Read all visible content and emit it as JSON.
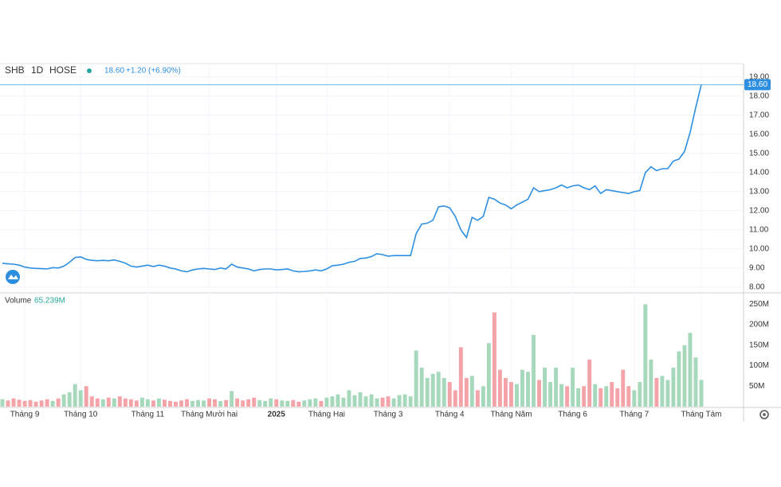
{
  "chart_data": [
    {
      "type": "line",
      "symbol": "SHB",
      "interval": "1D",
      "exchange": "HOSE",
      "last_price": {
        "value": 18.6,
        "label": "18.60"
      },
      "change": {
        "value": 1.2,
        "label": "+1.20"
      },
      "change_pct": {
        "value": 6.9,
        "label": "(+6.90%)"
      },
      "color": "#2e8fe0",
      "grid": true,
      "xlim": [
        0,
        125
      ],
      "ylim": [
        7.7,
        19.7
      ],
      "yticks": [
        {
          "value": 8,
          "label": "8.00"
        },
        {
          "value": 9,
          "label": "9.00"
        },
        {
          "value": 10,
          "label": "10.00"
        },
        {
          "value": 11,
          "label": "11.00"
        },
        {
          "value": 12,
          "label": "12.00"
        },
        {
          "value": 13,
          "label": "13.00"
        },
        {
          "value": 14,
          "label": "14.00"
        },
        {
          "value": 15,
          "label": "15.00"
        },
        {
          "value": 16,
          "label": "16.00"
        },
        {
          "value": 17,
          "label": "17.00"
        },
        {
          "value": 18,
          "label": "18.00"
        },
        {
          "value": 19,
          "label": "19.00"
        }
      ],
      "values": [
        9.25,
        9.22,
        9.2,
        9.15,
        9.05,
        9.0,
        8.98,
        8.97,
        8.95,
        9.02,
        9.0,
        9.1,
        9.3,
        9.55,
        9.58,
        9.45,
        9.4,
        9.38,
        9.4,
        9.38,
        9.42,
        9.35,
        9.25,
        9.1,
        9.05,
        9.1,
        9.15,
        9.08,
        9.15,
        9.1,
        9.0,
        8.95,
        8.85,
        8.8,
        8.9,
        8.95,
        8.98,
        8.95,
        8.92,
        9.0,
        8.95,
        9.2,
        9.05,
        9.0,
        8.95,
        8.85,
        8.92,
        8.95,
        8.95,
        8.9,
        8.92,
        8.95,
        8.85,
        8.8,
        8.82,
        8.85,
        8.9,
        8.85,
        8.95,
        9.12,
        9.15,
        9.2,
        9.3,
        9.35,
        9.5,
        9.52,
        9.6,
        9.75,
        9.7,
        9.62,
        9.65,
        9.65,
        9.65,
        9.65,
        10.8,
        11.3,
        11.35,
        11.5,
        12.2,
        12.25,
        12.15,
        11.7,
        11.0,
        10.6,
        11.65,
        11.5,
        11.7,
        12.7,
        12.6,
        12.4,
        12.3,
        12.1,
        12.3,
        12.45,
        12.6,
        13.2,
        13.0,
        13.05,
        13.1,
        13.2,
        13.35,
        13.2,
        13.3,
        13.35,
        13.2,
        13.1,
        13.3,
        12.9,
        13.1,
        13.05,
        13.0,
        12.95,
        12.9,
        13.0,
        13.05,
        14.0,
        14.3,
        14.1,
        14.2,
        14.2,
        14.6,
        14.7,
        15.1,
        16.1,
        17.4,
        18.6
      ]
    },
    {
      "type": "bar",
      "title": "Volume",
      "last_volume": {
        "value": 65.239,
        "label": "65.239M"
      },
      "up_color": "#a6d8bc",
      "down_color": "#f4a3a8",
      "xlim": [
        0,
        125
      ],
      "ylim": [
        0,
        270
      ],
      "yticks": [
        {
          "value": 50,
          "label": "50M"
        },
        {
          "value": 100,
          "label": "100M"
        },
        {
          "value": 150,
          "label": "150M"
        },
        {
          "value": 200,
          "label": "200M"
        },
        {
          "value": 250,
          "label": "250M"
        }
      ],
      "xticks": [
        {
          "value": 4,
          "label": "Tháng 9"
        },
        {
          "value": 14,
          "label": "Tháng 10"
        },
        {
          "value": 26,
          "label": "Tháng 11"
        },
        {
          "value": 37,
          "label": "Tháng Mười hai"
        },
        {
          "value": 49,
          "label": "2025"
        },
        {
          "value": 58,
          "label": "Tháng Hai"
        },
        {
          "value": 69,
          "label": "Tháng 3"
        },
        {
          "value": 80,
          "label": "Tháng 4"
        },
        {
          "value": 91,
          "label": "Tháng Năm"
        },
        {
          "value": 102,
          "label": "Tháng 6"
        },
        {
          "value": 113,
          "label": "Tháng 7"
        },
        {
          "value": 125,
          "label": "Tháng Tám"
        }
      ],
      "values": [
        18,
        15,
        20,
        17,
        14,
        16,
        12,
        15,
        18,
        14,
        20,
        30,
        35,
        55,
        40,
        50,
        25,
        20,
        18,
        22,
        20,
        25,
        20,
        18,
        15,
        22,
        18,
        15,
        20,
        17,
        14,
        12,
        15,
        18,
        14,
        16,
        15,
        20,
        18,
        14,
        16,
        38,
        20,
        15,
        18,
        22,
        16,
        14,
        20,
        18,
        15,
        14,
        16,
        12,
        15,
        18,
        20,
        14,
        22,
        25,
        30,
        22,
        40,
        28,
        35,
        25,
        30,
        20,
        22,
        25,
        20,
        28,
        30,
        25,
        137,
        95,
        70,
        80,
        85,
        70,
        60,
        40,
        145,
        70,
        75,
        40,
        50,
        155,
        230,
        90,
        70,
        60,
        55,
        90,
        85,
        175,
        65,
        95,
        60,
        95,
        55,
        50,
        95,
        45,
        50,
        115,
        55,
        45,
        50,
        60,
        45,
        90,
        50,
        40,
        60,
        250,
        115,
        70,
        75,
        65,
        95,
        135,
        150,
        180,
        120,
        65.239
      ]
    }
  ]
}
